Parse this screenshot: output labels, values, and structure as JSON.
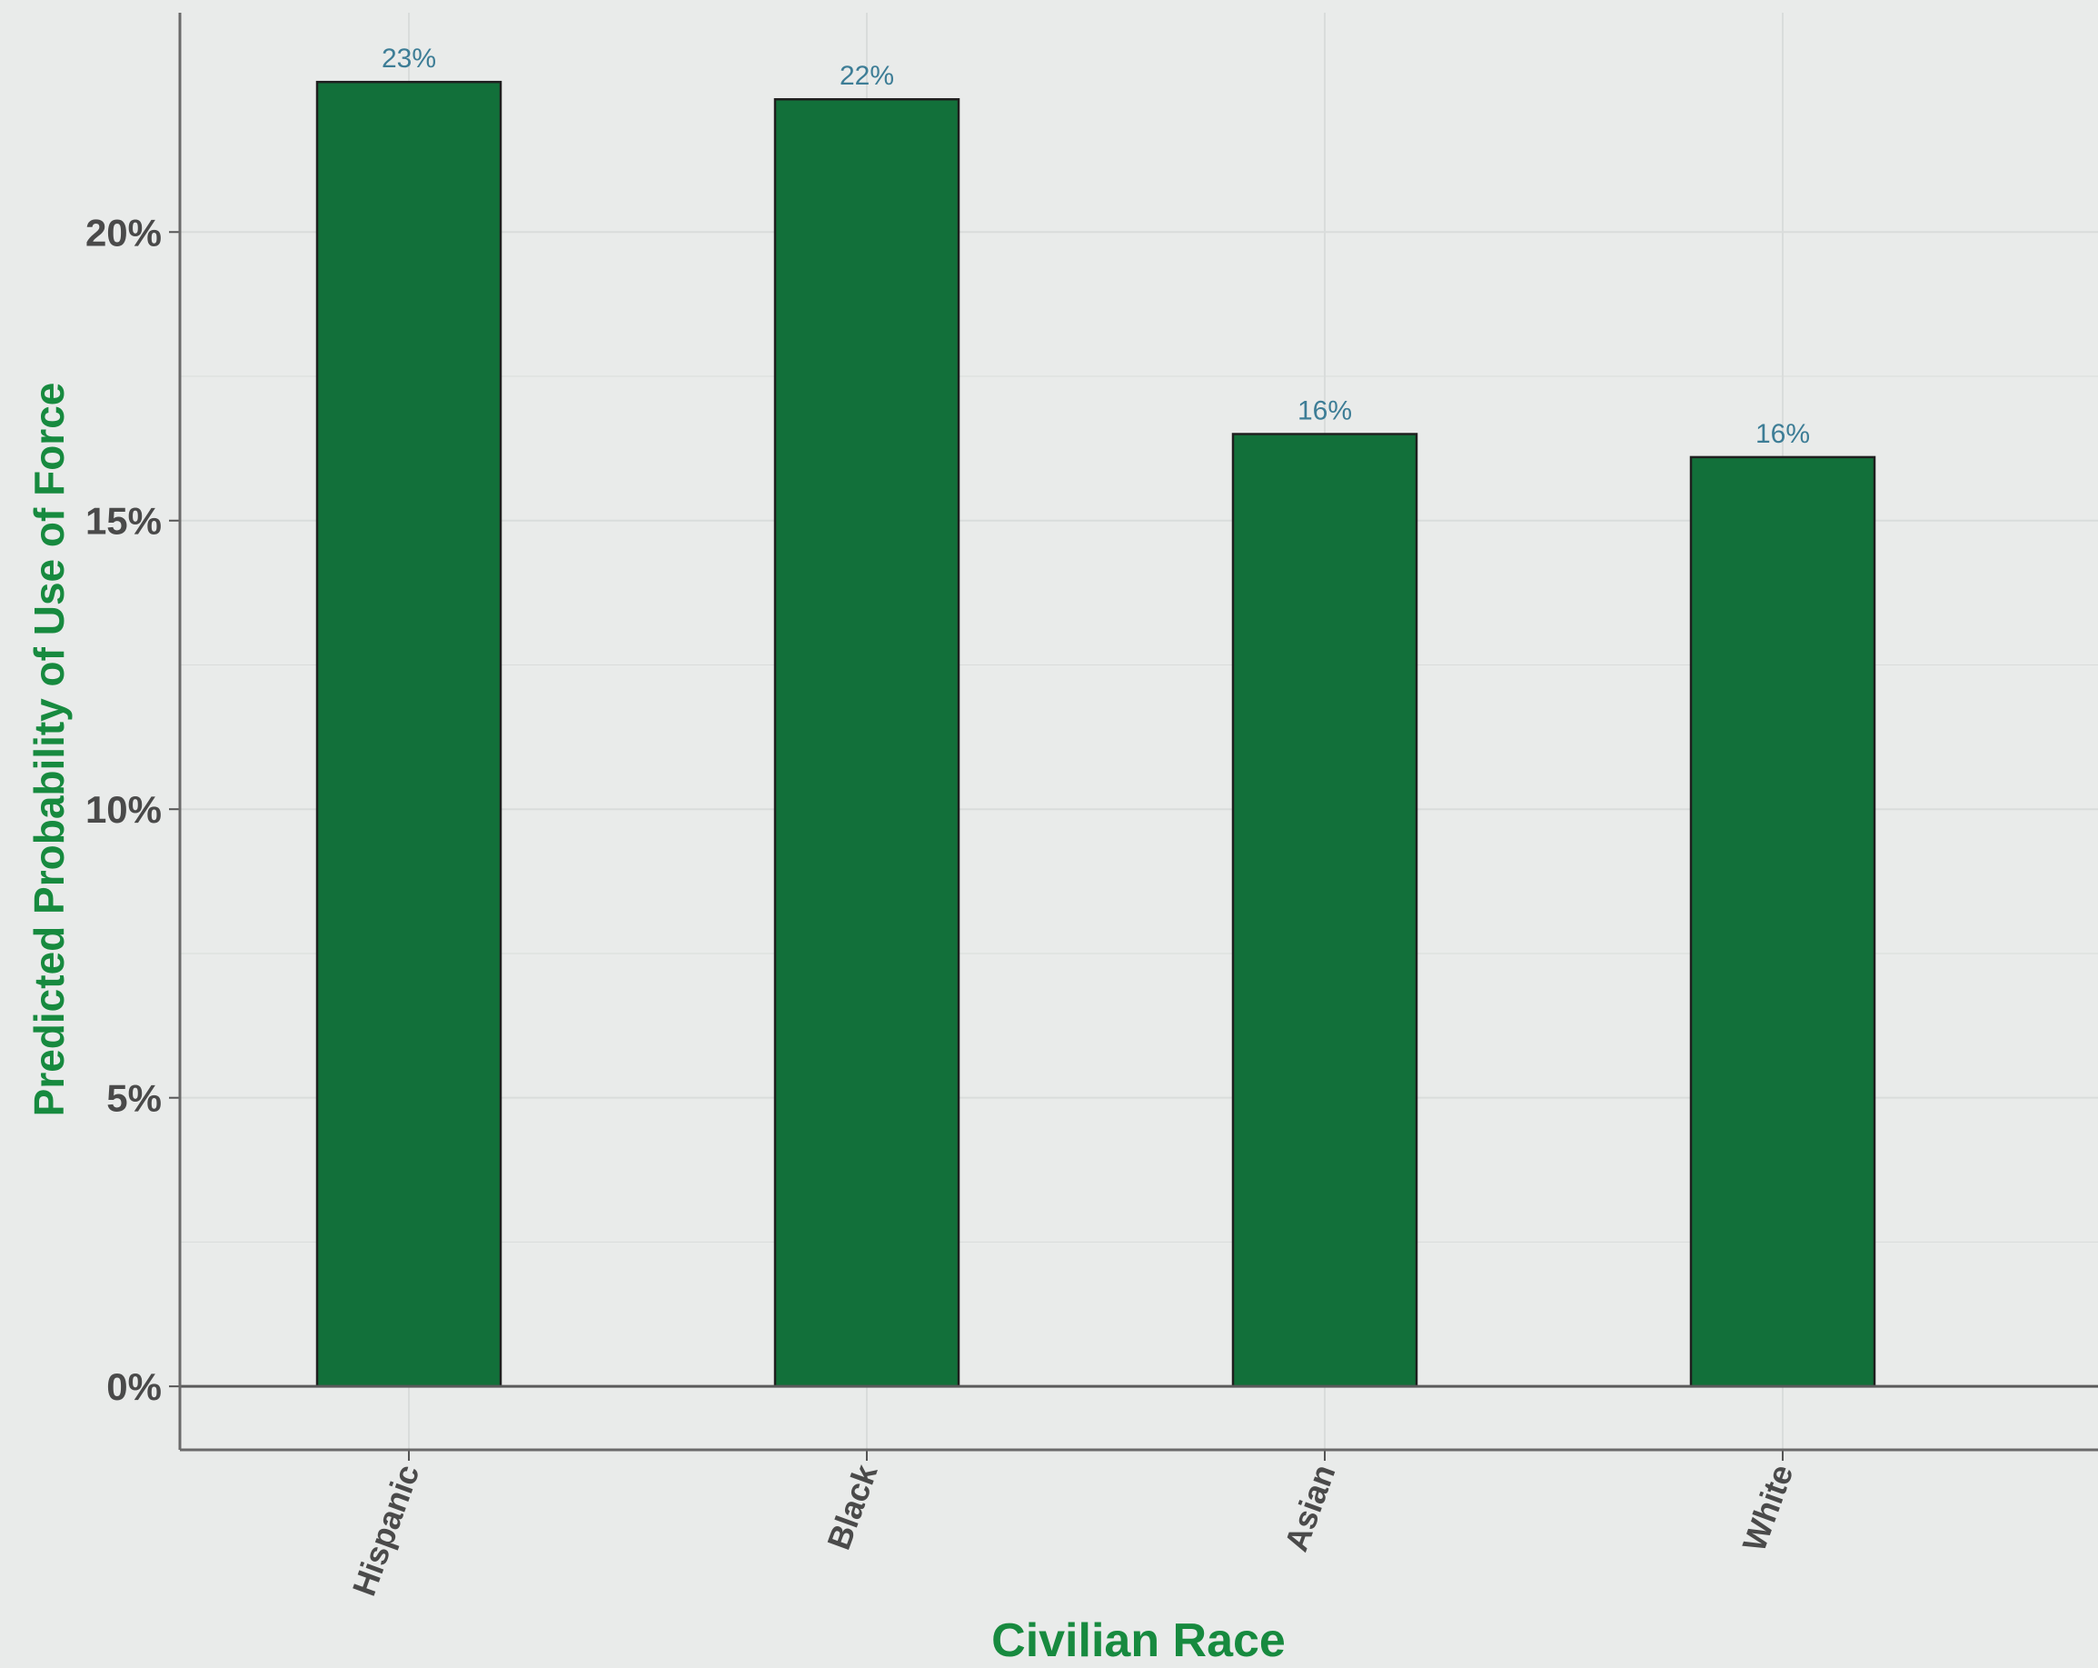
{
  "chart_data": {
    "type": "bar",
    "title": "",
    "xlabel": "Civilian Race",
    "ylabel": "Predicted Probability of Use of Force",
    "categories": [
      "Hispanic",
      "Black",
      "Asian",
      "White"
    ],
    "values": [
      22.6,
      22.3,
      16.5,
      16.1
    ],
    "data_labels": [
      "23%",
      "22%",
      "16%",
      "16%"
    ],
    "yticks": [
      0,
      5,
      10,
      15,
      20
    ],
    "ytick_labels": [
      "0%",
      "5%",
      "10%",
      "15%",
      "20%"
    ],
    "ylim": [
      -1.1,
      23.8
    ],
    "grid": true,
    "legend": "none",
    "colors": {
      "bar_fill": "#12703a",
      "bar_stroke": "#1f1f1f",
      "background": "#e9ebea",
      "grid": "#d9dcdb",
      "axis_title": "#178a3f",
      "tick_label": "#4a4a4a",
      "data_label": "#3d7d96"
    }
  }
}
